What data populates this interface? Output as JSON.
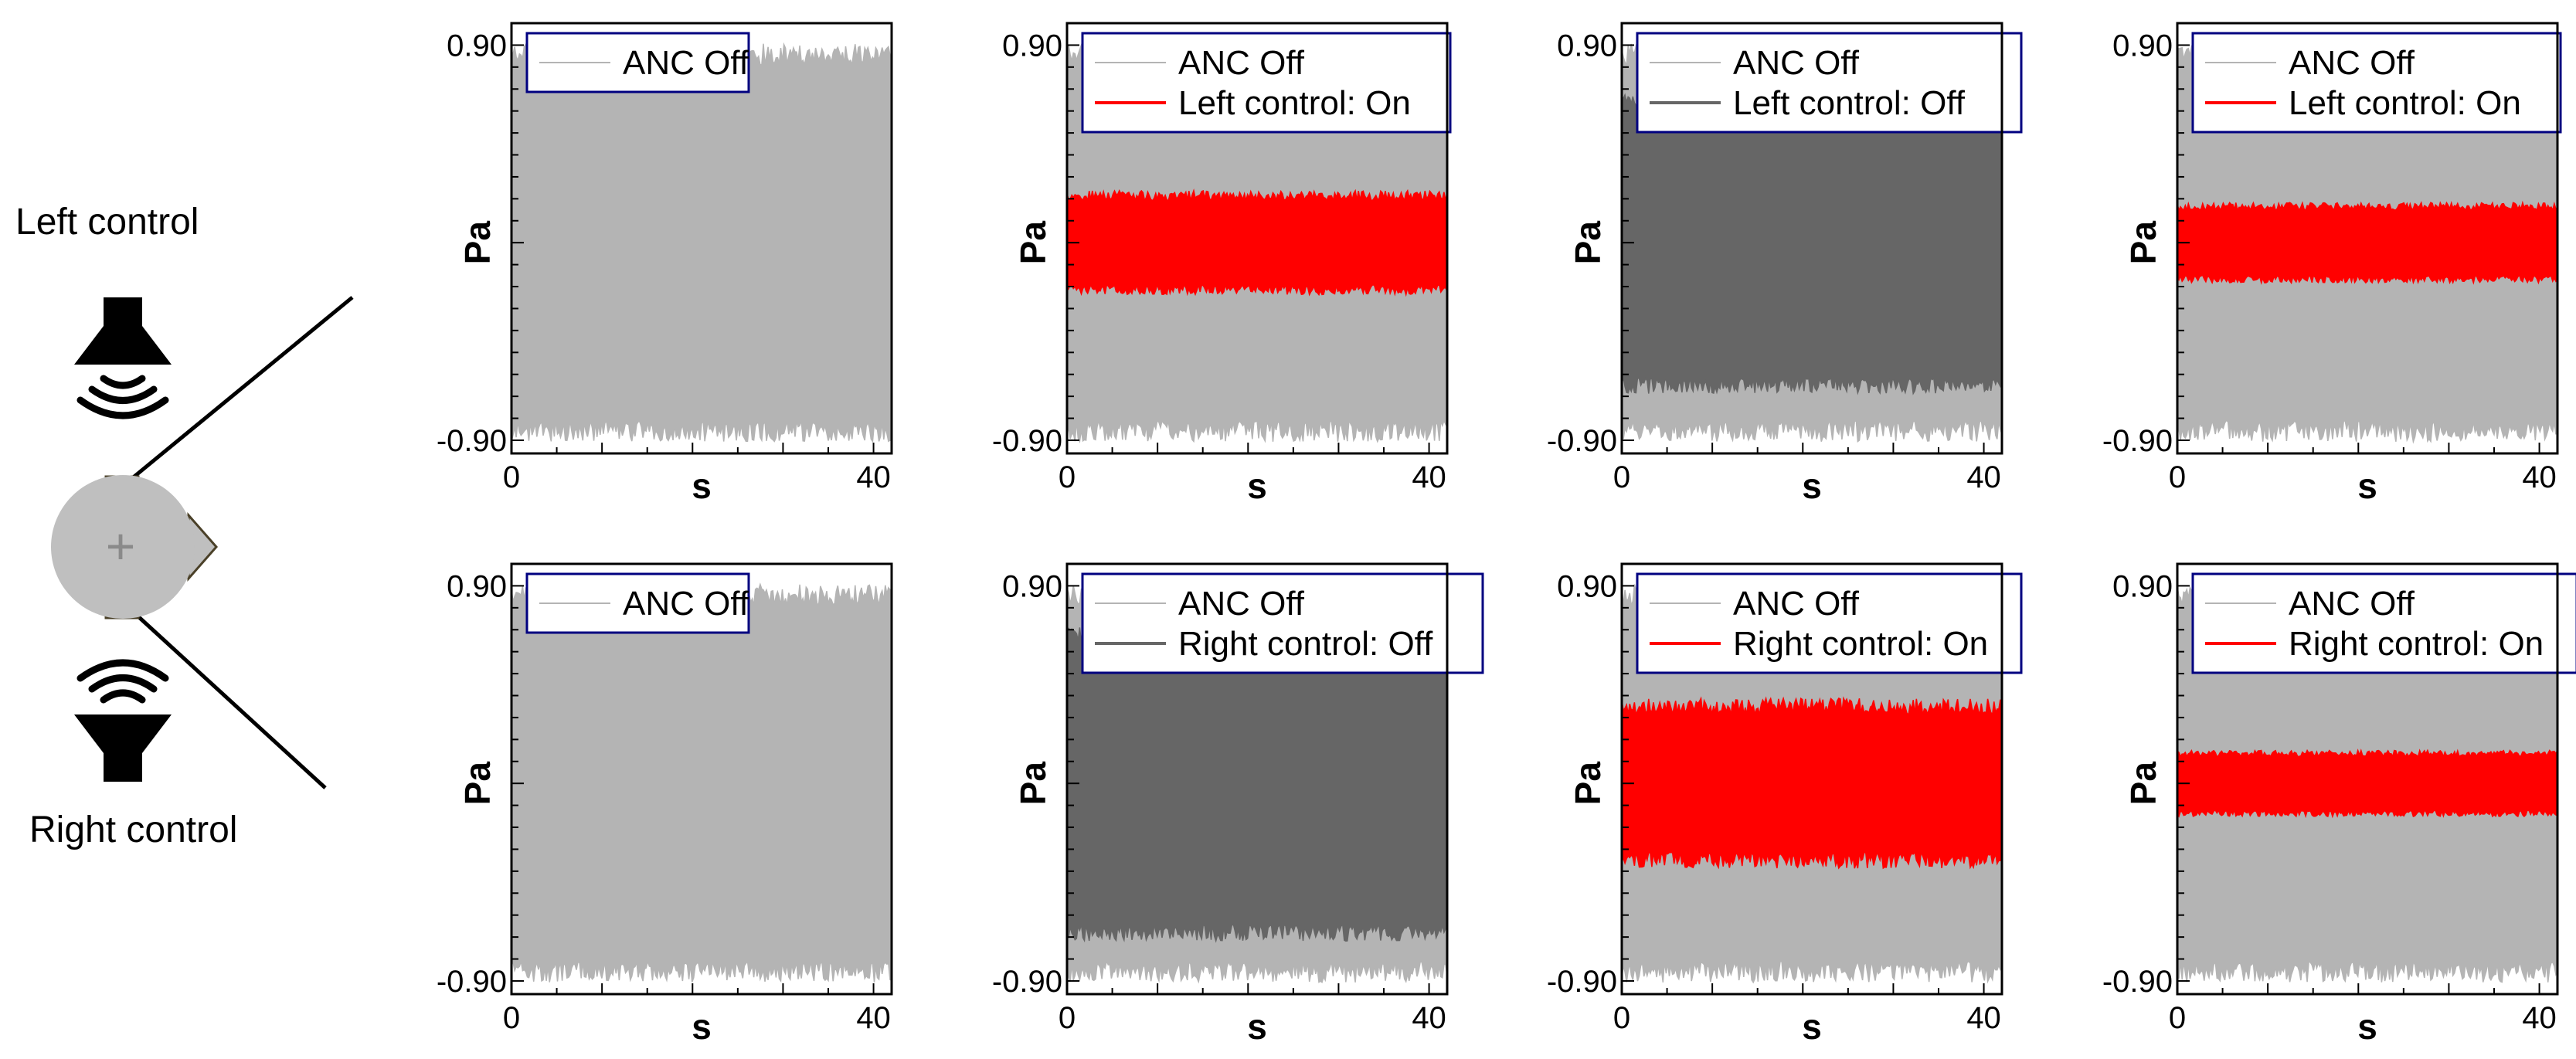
{
  "diagram": {
    "left_label": "Left control",
    "right_label": "Right control",
    "head_symbol": "+"
  },
  "colors": {
    "anc_off": "#b4b4b4",
    "control_off": "#666666",
    "control_on": "#ff0000",
    "frame": "#000000",
    "legend_border": "#000080"
  },
  "chart_data": [
    {
      "type": "line",
      "row": 0,
      "col": 0,
      "xlabel": "s",
      "ylabel": "Pa",
      "xlim": [
        0,
        42
      ],
      "ylim": [
        -0.96,
        1.0
      ],
      "xticks": [
        "0",
        "40"
      ],
      "yticks": [
        "0.90",
        "-0.90"
      ],
      "series": [
        {
          "name": "ANC Off",
          "style": "anc_off",
          "amplitude_pa": 0.87,
          "duration_s": 42
        }
      ]
    },
    {
      "type": "line",
      "row": 0,
      "col": 1,
      "xlabel": "s",
      "ylabel": "Pa",
      "xlim": [
        0,
        42
      ],
      "ylim": [
        -0.96,
        1.0
      ],
      "xticks": [
        "0",
        "40"
      ],
      "yticks": [
        "0.90",
        "-0.90"
      ],
      "series": [
        {
          "name": "ANC Off",
          "style": "anc_off",
          "amplitude_pa": 0.87,
          "duration_s": 42
        },
        {
          "name": "Left control: On",
          "style": "control_on",
          "amplitude_pa": 0.22,
          "duration_s": 42
        }
      ]
    },
    {
      "type": "line",
      "row": 0,
      "col": 2,
      "xlabel": "s",
      "ylabel": "Pa",
      "xlim": [
        0,
        42
      ],
      "ylim": [
        -0.96,
        1.0
      ],
      "xticks": [
        "0",
        "40"
      ],
      "yticks": [
        "0.90",
        "-0.90"
      ],
      "series": [
        {
          "name": "ANC Off",
          "style": "anc_off",
          "amplitude_pa": 0.87,
          "duration_s": 42
        },
        {
          "name": "Left control: Off",
          "style": "control_off",
          "amplitude_pa": 0.66,
          "duration_s": 42
        }
      ]
    },
    {
      "type": "line",
      "row": 0,
      "col": 3,
      "xlabel": "s",
      "ylabel": "Pa",
      "xlim": [
        0,
        42
      ],
      "ylim": [
        -0.96,
        1.0
      ],
      "xticks": [
        "0",
        "40"
      ],
      "yticks": [
        "0.90",
        "-0.90"
      ],
      "series": [
        {
          "name": "ANC Off",
          "style": "anc_off",
          "amplitude_pa": 0.87,
          "duration_s": 42
        },
        {
          "name": "Left control: On",
          "style": "control_on",
          "amplitude_pa": 0.17,
          "duration_s": 42
        }
      ]
    },
    {
      "type": "line",
      "row": 1,
      "col": 0,
      "xlabel": "s",
      "ylabel": "Pa",
      "xlim": [
        0,
        42
      ],
      "ylim": [
        -0.96,
        1.0
      ],
      "xticks": [
        "0",
        "40"
      ],
      "yticks": [
        "0.90",
        "-0.90"
      ],
      "series": [
        {
          "name": "ANC Off",
          "style": "anc_off",
          "amplitude_pa": 0.87,
          "duration_s": 42
        }
      ]
    },
    {
      "type": "line",
      "row": 1,
      "col": 1,
      "xlabel": "s",
      "ylabel": "Pa",
      "xlim": [
        0,
        42
      ],
      "ylim": [
        -0.96,
        1.0
      ],
      "xticks": [
        "0",
        "40"
      ],
      "yticks": [
        "0.90",
        "-0.90"
      ],
      "series": [
        {
          "name": "ANC Off",
          "style": "anc_off",
          "amplitude_pa": 0.87,
          "duration_s": 42
        },
        {
          "name": "Right control: Off",
          "style": "control_off",
          "amplitude_pa": 0.69,
          "duration_s": 42
        }
      ]
    },
    {
      "type": "line",
      "row": 1,
      "col": 2,
      "xlabel": "s",
      "ylabel": "Pa",
      "xlim": [
        0,
        42
      ],
      "ylim": [
        -0.96,
        1.0
      ],
      "xticks": [
        "0",
        "40"
      ],
      "yticks": [
        "0.90",
        "-0.90"
      ],
      "series": [
        {
          "name": "ANC Off",
          "style": "anc_off",
          "amplitude_pa": 0.87,
          "duration_s": 42
        },
        {
          "name": "Right control: On",
          "style": "control_on",
          "amplitude_pa": 0.36,
          "duration_s": 42
        }
      ]
    },
    {
      "type": "line",
      "row": 1,
      "col": 3,
      "xlabel": "s",
      "ylabel": "Pa",
      "xlim": [
        0,
        42
      ],
      "ylim": [
        -0.96,
        1.0
      ],
      "xticks": [
        "0",
        "40"
      ],
      "yticks": [
        "0.90",
        "-0.90"
      ],
      "series": [
        {
          "name": "ANC Off",
          "style": "anc_off",
          "amplitude_pa": 0.87,
          "duration_s": 42
        },
        {
          "name": "Right control: On",
          "style": "control_on",
          "amplitude_pa": 0.14,
          "duration_s": 42
        }
      ]
    }
  ]
}
